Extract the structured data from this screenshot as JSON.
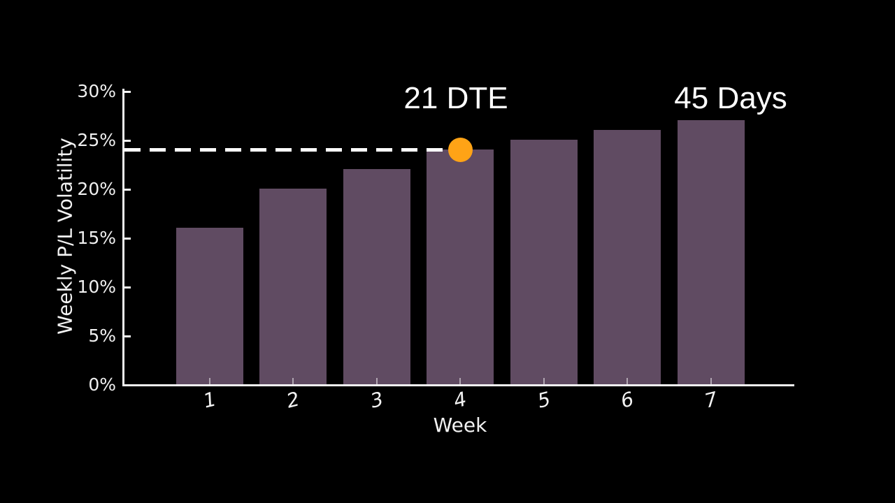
{
  "figure": {
    "background_color": "#000000",
    "text_color": "#f2f2f2",
    "axis_color": "#f2f2f2"
  },
  "chart_data": {
    "type": "bar",
    "title": "",
    "xlabel": "Week",
    "ylabel": "Weekly P/L Volatility",
    "categories": [
      "1",
      "2",
      "3",
      "4",
      "5",
      "6",
      "7"
    ],
    "values": [
      16,
      20,
      22,
      24,
      25,
      26,
      27
    ],
    "value_unit": "%",
    "ylim": [
      0,
      30
    ],
    "ytick_step": 5,
    "ytick_labels": [
      "0%",
      "5%",
      "10%",
      "15%",
      "20%",
      "25%",
      "30%"
    ],
    "grid": false,
    "legend": "none",
    "bar_color": "#604b62",
    "reference_line": {
      "value": 24,
      "style": "dashed",
      "color": "#ffffff",
      "spans": "from y-axis to top of week-4 bar"
    },
    "marker": {
      "week": "4",
      "value": 24,
      "shape": "circle",
      "color": "#ffa316"
    },
    "annotations": [
      {
        "text": "21 DTE",
        "anchor_week": "4",
        "color": "#ffffff"
      },
      {
        "text": "45 Days",
        "anchor_week": "7",
        "color": "#ffffff"
      }
    ]
  }
}
